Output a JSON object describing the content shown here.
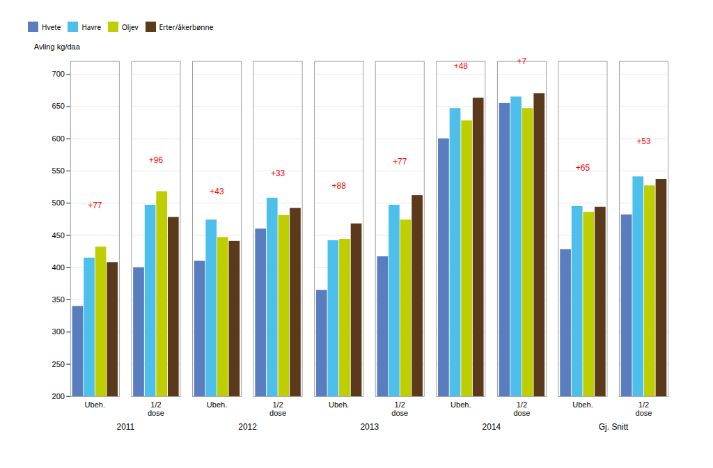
{
  "chart_data": {
    "type": "bar",
    "categories": [
      "Ubeh.",
      "1/2\ndose",
      "Ubeh.",
      "1/2\ndose",
      "Ubeh.",
      "1/2\ndose",
      "Ubeh.",
      "1/2\ndose",
      "Ubeh.",
      "1/2\ndose"
    ],
    "category_groups": [
      "2011",
      "2012",
      "2013",
      "2014",
      "Gj. Snitt"
    ],
    "series": [
      {
        "name": "Hvete",
        "color": "#5a7dbf",
        "values": [
          340,
          400,
          410,
          460,
          365,
          417,
          600,
          655,
          428,
          482
        ]
      },
      {
        "name": "Havre",
        "color": "#4dbfea",
        "values": [
          415,
          497,
          474,
          508,
          442,
          497,
          647,
          665,
          495,
          541
        ]
      },
      {
        "name": "Oljev",
        "color": "#bfce00",
        "values": [
          432,
          518,
          447,
          481,
          444,
          474,
          628,
          647,
          486,
          527
        ]
      },
      {
        "name": "Erter/åkerbønne",
        "color": "#5a3a1a",
        "values": [
          408,
          478,
          441,
          492,
          468,
          512,
          663,
          670,
          494,
          537
        ]
      }
    ],
    "annotations": [
      {
        "x": 0,
        "text": "+77",
        "y": 490,
        "color": "red"
      },
      {
        "x": 1,
        "text": "+96",
        "y": 560,
        "color": "red"
      },
      {
        "x": 2,
        "text": "+43",
        "y": 512,
        "color": "red"
      },
      {
        "x": 3,
        "text": "+33",
        "y": 540,
        "color": "red"
      },
      {
        "x": 4,
        "text": "+88",
        "y": 520,
        "color": "red"
      },
      {
        "x": 5,
        "text": "+77",
        "y": 558,
        "color": "red"
      },
      {
        "x": 6,
        "text": "+48",
        "y": 706,
        "color": "red"
      },
      {
        "x": 7,
        "text": "+7",
        "y": 714,
        "color": "red"
      },
      {
        "x": 8,
        "text": "+65",
        "y": 548,
        "color": "red"
      },
      {
        "x": 9,
        "text": "+53",
        "y": 590,
        "color": "red"
      }
    ],
    "ylabel": "Avling kg/daa",
    "ylim": [
      200,
      720
    ],
    "yticks": [
      200,
      250,
      300,
      350,
      400,
      450,
      500,
      550,
      600,
      650,
      700
    ],
    "grid": true,
    "legend": "top"
  }
}
